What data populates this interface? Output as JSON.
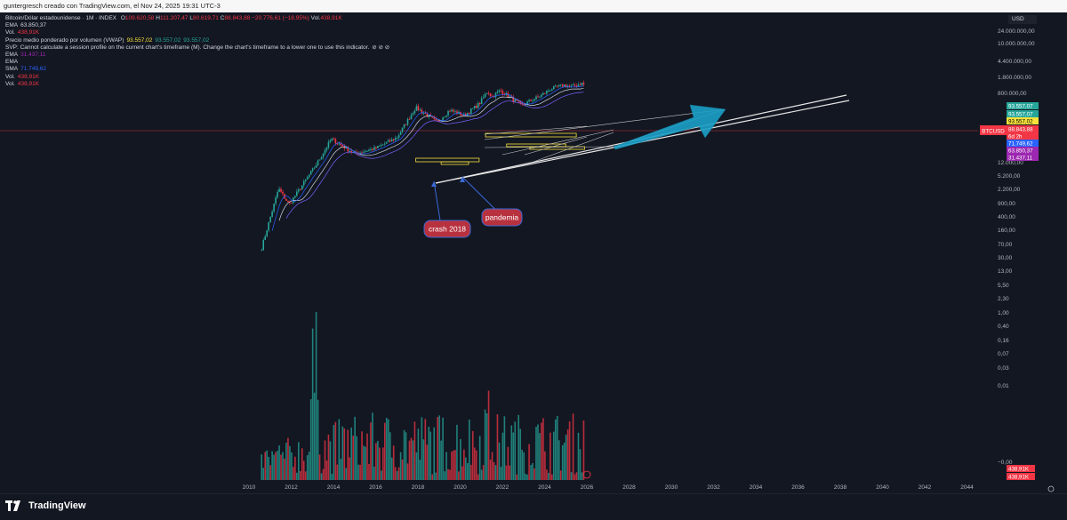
{
  "caption": "guntergresch creado con TradingView.com, el Nov 24, 2025 19:31 UTC-3",
  "legend": {
    "symbol": "Bitcoin/Dólar estadounidense · 1M · INDEX",
    "open_label": "O",
    "open": "109.620,58",
    "high_label": "H",
    "high": "111.207,47",
    "low_label": "L",
    "low": "80.619,71",
    "close_label": "C",
    "close": "88.843,88",
    "change": "−20.776,61 (−18,95%)",
    "vol_label": "Vol.",
    "vol": "438,91K",
    "rows": [
      {
        "label": "EMA",
        "value": "63.850,37",
        "color": "#d1d4dc"
      },
      {
        "label": "Vol.",
        "value": "438,91K",
        "color": "#f23645"
      },
      {
        "label": "Precio medio ponderado por volumen (VWAP)",
        "value": "93.557,02",
        "value2": "93.557,02",
        "value3": "93.557,02",
        "color": "#f7e13b"
      },
      {
        "label": "SVP: Cannot calculate a session profile on the current chart's timeframe (M). Change the chart's timeframe to a lower one to use this indicator.",
        "value": "⊘ ⊘ ⊘",
        "color": "#d1d4dc"
      },
      {
        "label": "EMA",
        "value": "31.437,11",
        "color": "#9c27b0"
      },
      {
        "label": "EMA",
        "value": "",
        "color": "#d1d4dc"
      },
      {
        "label": "SMA",
        "value": "71.749,62",
        "color": "#2962ff"
      },
      {
        "label": "Vol.",
        "value": "438,91K",
        "color": "#f23645"
      },
      {
        "label": "Vol.",
        "value": "438,91K",
        "color": "#f23645"
      }
    ]
  },
  "currency": "USD",
  "symbol_tag": "BTCUSD",
  "brand": "TradingView",
  "colors": {
    "up": "#26a69a",
    "down": "#f23645",
    "vwap": "#f7e13b",
    "arrow": "#1ba0c8",
    "note_bg": "#b8313f",
    "note_border": "#3a6ad6"
  },
  "chart_data": {
    "type": "candlestick",
    "y_scale": "log",
    "x_ticks": [
      "2010",
      "2012",
      "2014",
      "2016",
      "2018",
      "2020",
      "2022",
      "2024",
      "2026",
      "2028",
      "2030",
      "2032",
      "2034",
      "2036",
      "2038",
      "2040",
      "2042",
      "2044"
    ],
    "y_ticks": [
      "24.000.000,00",
      "10.000.000,00",
      "4.400.000,00",
      "1.800.000,00",
      "800.000,00",
      "12.000,00",
      "5.200,00",
      "2.200,00",
      "900,00",
      "400,00",
      "160,00",
      "70,00",
      "30,00",
      "13,00",
      "5,50",
      "2,30",
      "1,00",
      "0,40",
      "0,16",
      "0,07",
      "0,03",
      "0,01",
      "−0,00"
    ],
    "price_tags": [
      {
        "value": "93.557,07",
        "color": "#26a69a"
      },
      {
        "value": "93.557,07",
        "color": "#26a69a"
      },
      {
        "value": "93.557,02",
        "color": "#f7e13b"
      },
      {
        "value": "88.843,88",
        "color": "#f23645"
      },
      {
        "value": "6d 2h",
        "color": "#f23645"
      },
      {
        "value": "71.749,62",
        "color": "#2962ff"
      },
      {
        "value": "63.850,37",
        "color": "#9c27b0"
      },
      {
        "value": "31.437,11",
        "color": "#9c27b0"
      }
    ],
    "volume_tags": [
      "438,91K",
      "438,91K"
    ],
    "annotations": [
      "crash 2018",
      "pandemia"
    ],
    "closes_anchor": [
      [
        2010.6,
        0.07
      ],
      [
        2011.4,
        12
      ],
      [
        2011.9,
        3
      ],
      [
        2013.2,
        100
      ],
      [
        2013.9,
        900
      ],
      [
        2015.0,
        250
      ],
      [
        2016.0,
        400
      ],
      [
        2017.0,
        1000
      ],
      [
        2017.9,
        14000
      ],
      [
        2018.9,
        3800
      ],
      [
        2019.5,
        11000
      ],
      [
        2020.2,
        7000
      ],
      [
        2020.9,
        19000
      ],
      [
        2021.3,
        58000
      ],
      [
        2021.5,
        35000
      ],
      [
        2021.9,
        61000
      ],
      [
        2022.9,
        16500
      ],
      [
        2023.9,
        42000
      ],
      [
        2024.3,
        70000
      ],
      [
        2024.9,
        96000
      ],
      [
        2025.3,
        85000
      ],
      [
        2025.8,
        115000
      ],
      [
        2025.9,
        88843
      ]
    ]
  }
}
